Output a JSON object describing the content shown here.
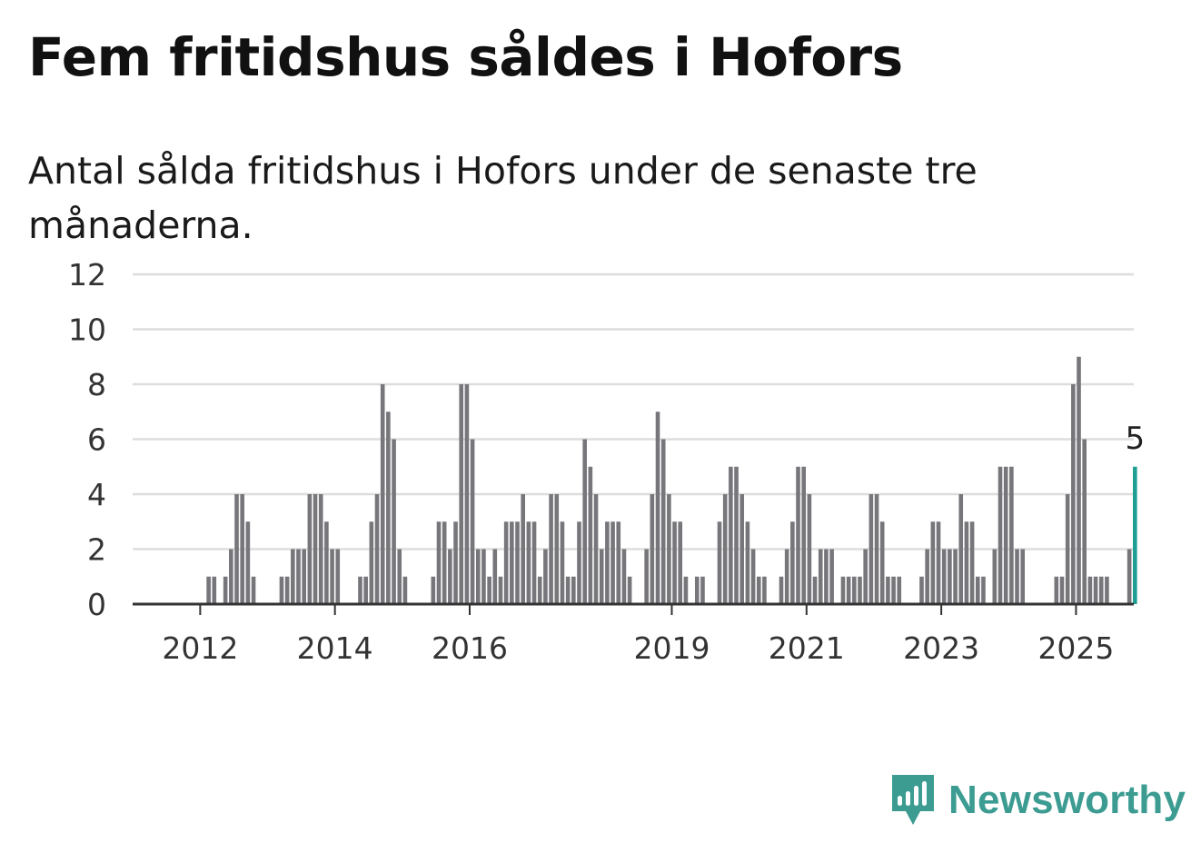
{
  "title": "Fem fritidshus såldes i Hofors",
  "subtitle": "Antal sålda fritidshus i Hofors under de senaste tre månaderna.",
  "brand": {
    "name": "Newsworthy",
    "color": "#3c9c92",
    "icon": "newsworthy-logo-icon"
  },
  "colors": {
    "bar": "#76767b",
    "highlight": "#1f9e94",
    "grid": "#dddddd",
    "axis": "#333333"
  },
  "chart_data": {
    "type": "bar",
    "x_unit": "month",
    "start": "2011-05",
    "values": [
      0,
      0,
      0,
      0,
      0,
      0,
      0,
      0,
      0,
      1,
      1,
      0,
      1,
      2,
      4,
      4,
      3,
      1,
      0,
      0,
      0,
      0,
      1,
      1,
      2,
      2,
      2,
      4,
      4,
      4,
      3,
      2,
      2,
      0,
      0,
      0,
      1,
      1,
      3,
      4,
      8,
      7,
      6,
      2,
      1,
      0,
      0,
      0,
      0,
      1,
      3,
      3,
      2,
      3,
      8,
      8,
      6,
      2,
      2,
      1,
      2,
      1,
      3,
      3,
      3,
      4,
      3,
      3,
      1,
      2,
      4,
      4,
      3,
      1,
      1,
      3,
      6,
      5,
      4,
      2,
      3,
      3,
      3,
      2,
      1,
      0,
      0,
      2,
      4,
      7,
      6,
      4,
      3,
      3,
      1,
      0,
      1,
      1,
      0,
      0,
      3,
      4,
      5,
      5,
      4,
      3,
      2,
      1,
      1,
      0,
      0,
      1,
      2,
      3,
      5,
      5,
      4,
      1,
      2,
      2,
      2,
      0,
      1,
      1,
      1,
      1,
      2,
      4,
      4,
      3,
      1,
      1,
      1,
      0,
      0,
      0,
      1,
      2,
      3,
      3,
      2,
      2,
      2,
      4,
      3,
      3,
      1,
      1,
      0,
      2,
      5,
      5,
      5,
      2,
      2,
      0,
      0,
      0,
      0,
      0,
      1,
      1,
      4,
      8,
      9,
      6,
      1,
      1,
      1,
      1,
      0,
      0,
      0,
      2,
      5
    ],
    "highlight": {
      "label": "5",
      "value": 5
    },
    "y_ticks": [
      "0",
      "2",
      "4",
      "6",
      "8",
      "10",
      "12"
    ],
    "ylim": [
      0,
      12
    ],
    "x_ticks": [
      {
        "label": "2012",
        "date": "2012-01"
      },
      {
        "label": "2014",
        "date": "2014-01"
      },
      {
        "label": "2016",
        "date": "2016-01"
      },
      {
        "label": "2019",
        "date": "2019-01"
      },
      {
        "label": "2021",
        "date": "2021-01"
      },
      {
        "label": "2023",
        "date": "2023-01"
      },
      {
        "label": "2025",
        "date": "2025-01"
      }
    ],
    "grid": true,
    "legend": "none"
  }
}
